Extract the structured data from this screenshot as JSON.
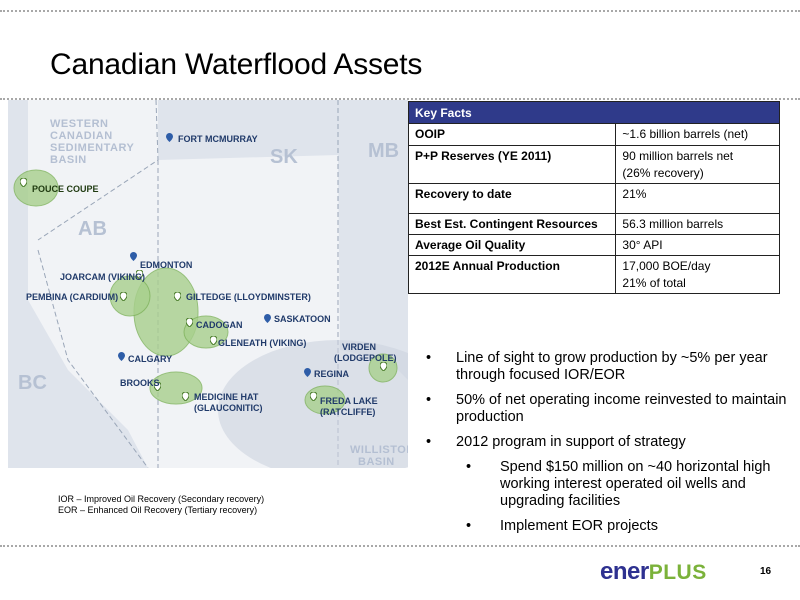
{
  "title": "Canadian Waterflood Assets",
  "map": {
    "regions": [
      "WESTERN",
      "CANADIAN",
      "SEDIMENTARY",
      "BASIN"
    ],
    "williston": [
      "WILLISTON",
      "BASIN"
    ],
    "provinces": {
      "ab": "AB",
      "sk": "SK",
      "mb": "MB",
      "bc": "BC"
    },
    "labels": {
      "fort_mcmurray": "FORT MCMURRAY",
      "pouce_coupe": "POUCE COUPE",
      "edmonton": "EDMONTON",
      "joarcam": "JOARCAM (VIKING)",
      "pembina": "PEMBINA (CARDIUM)",
      "giltedge": "GILTEDGE (LLOYDMINSTER)",
      "cadogan": "CADOGAN",
      "saskatoon": "SASKATOON",
      "gleneath": "GLENEATH (VIKING)",
      "calgary": "CALGARY",
      "brooks": "BROOKS",
      "medicine_hat": [
        "MEDICINE HAT",
        "(GLAUCONITIC)"
      ],
      "regina": "REGINA",
      "virden": [
        "VIRDEN",
        "(LODGEPOLE)"
      ],
      "freda_lake": [
        "FREDA LAKE",
        "(RATCLIFFE)"
      ]
    },
    "colors": {
      "water": "#dfe4ec",
      "land": "#ffffff",
      "asset": "#a8d08d"
    }
  },
  "key_facts": {
    "header": "Key Facts",
    "rows": [
      {
        "label": "OOIP",
        "value": [
          "~1.6 billion barrels (net)"
        ]
      },
      {
        "label": "P+P Reserves (YE 2011)",
        "value": [
          "90 million barrels net",
          "(26% recovery)"
        ]
      },
      {
        "label": "Recovery to date",
        "value": [
          "21%"
        ]
      },
      {
        "label": "Best Est. Contingent Resources",
        "value": [
          "56.3 million barrels"
        ]
      },
      {
        "label": "Average Oil Quality",
        "value": [
          "30° API"
        ]
      },
      {
        "label": "2012E Annual Production",
        "value": [
          "17,000 BOE/day",
          "21% of total"
        ]
      }
    ]
  },
  "bullets": [
    "Line of sight to grow production by ~5% per year through focused IOR/EOR",
    "50% of net operating income reinvested to maintain production",
    "2012 program in support of strategy"
  ],
  "sub_bullets": [
    "Spend $150 million on ~40 horizontal high working interest operated oil wells and upgrading facilities",
    "Implement EOR projects"
  ],
  "footnotes": [
    "IOR – Improved Oil Recovery (Secondary recovery)",
    "EOR – Enhanced Oil Recovery (Tertiary recovery)"
  ],
  "logo": {
    "part1": "ener",
    "part2": "PLUS"
  },
  "page_number": "16"
}
